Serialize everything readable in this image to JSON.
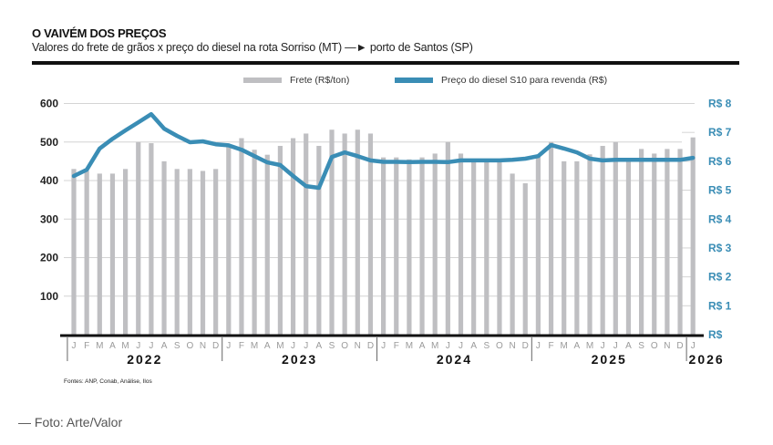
{
  "header": {
    "title": "O VAIVÉM DOS PREÇOS",
    "subtitle": "Valores do frete de grãos x preço do diesel na rota Sorriso (MT) —► porto de Santos (SP)"
  },
  "footer": {
    "source": "Fontes: ANP, Conab, Análise, Ilos",
    "credit": "— Foto: Arte/Valor"
  },
  "colors": {
    "bar": "#bfbfc2",
    "line": "#3a8db5",
    "grid": "#d4d4d4",
    "axis": "#111111"
  },
  "chart_data": {
    "type": "bar+line",
    "title": "O VAIVÉM DOS PREÇOS",
    "subtitle": "Valores do frete de grãos x preço do diesel na rota Sorriso (MT) —► porto de Santos (SP)",
    "legend": [
      {
        "name": "Frete (R$/ton)",
        "type": "bar"
      },
      {
        "name": "Preço do diesel S10 para revenda (R$)",
        "type": "line"
      }
    ],
    "legend_position": "top-center",
    "grid": true,
    "y_left": {
      "label": "",
      "range": [
        0,
        600
      ],
      "ticks": [
        100,
        200,
        300,
        400,
        500,
        600
      ],
      "tick_labels": [
        "100",
        "200",
        "300",
        "400",
        "500",
        "600"
      ]
    },
    "y_right": {
      "label": "",
      "range": [
        0,
        8
      ],
      "ticks": [
        0,
        1,
        2,
        3,
        4,
        5,
        6,
        7,
        8
      ],
      "tick_labels": [
        "R$",
        "R$ 1",
        "R$ 2",
        "R$ 3",
        "R$ 4",
        "R$ 5",
        "R$ 6",
        "R$ 7",
        "R$ 8"
      ]
    },
    "months": [
      "J",
      "F",
      "M",
      "A",
      "M",
      "J",
      "J",
      "A",
      "S",
      "O",
      "N",
      "D",
      "J",
      "F",
      "M",
      "A",
      "M",
      "J",
      "J",
      "A",
      "S",
      "O",
      "N",
      "D",
      "J",
      "F",
      "M",
      "A",
      "M",
      "J",
      "J",
      "A",
      "S",
      "O",
      "N",
      "D",
      "J",
      "F",
      "M",
      "A",
      "M",
      "J",
      "J",
      "A",
      "S",
      "O",
      "N",
      "D",
      "J"
    ],
    "years": [
      {
        "label": "2022",
        "months": 12
      },
      {
        "label": "2023",
        "months": 12
      },
      {
        "label": "2024",
        "months": 12
      },
      {
        "label": "2025",
        "months": 12
      },
      {
        "label": "2026",
        "months": 1
      }
    ],
    "series": [
      {
        "name": "Frete (R$/ton)",
        "axis": "left",
        "type": "bar",
        "values": [
          430,
          425,
          418,
          418,
          430,
          500,
          497,
          450,
          430,
          430,
          425,
          430,
          490,
          510,
          480,
          467,
          490,
          510,
          522,
          490,
          532,
          522,
          532,
          522,
          460,
          460,
          455,
          460,
          470,
          500,
          470,
          455,
          450,
          450,
          418,
          393,
          465,
          500,
          450,
          450,
          468,
          490,
          500,
          455,
          482,
          470,
          482,
          482,
          512
        ]
      },
      {
        "name": "Preço do diesel S10 para revenda (R$)",
        "axis": "right",
        "type": "line",
        "values": [
          5.49,
          5.71,
          6.44,
          6.78,
          7.07,
          7.35,
          7.63,
          7.13,
          6.88,
          6.66,
          6.69,
          6.59,
          6.55,
          6.4,
          6.18,
          5.96,
          5.87,
          5.49,
          5.14,
          5.08,
          6.15,
          6.31,
          6.18,
          6.03,
          5.98,
          5.98,
          5.97,
          5.98,
          5.98,
          5.97,
          6.03,
          6.03,
          6.03,
          6.03,
          6.05,
          6.09,
          6.18,
          6.56,
          6.44,
          6.31,
          6.09,
          6.03,
          6.05,
          6.05,
          6.05,
          6.05,
          6.05,
          6.05,
          6.12
        ]
      }
    ]
  }
}
